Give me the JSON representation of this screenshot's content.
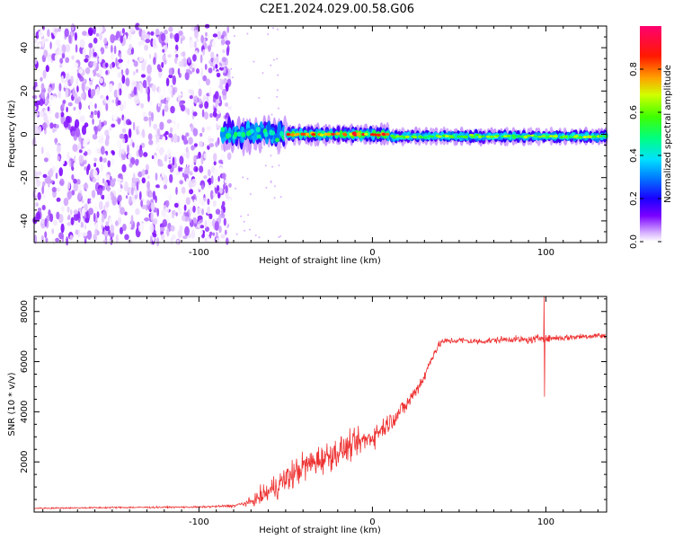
{
  "title": "C2E1.2024.029.00.58.G06",
  "chart_data": [
    {
      "type": "heatmap",
      "xlabel": "Height of straight line (km)",
      "ylabel": "Frequency (Hz)",
      "xlim": [
        -195,
        135
      ],
      "ylim": [
        -50,
        50
      ],
      "x_ticks": [
        -100,
        0,
        100
      ],
      "x_tick_labels": [
        "-100",
        "0",
        "100"
      ],
      "y_ticks": [
        -40,
        -20,
        0,
        20,
        40
      ],
      "y_tick_labels": [
        "-40",
        "-20",
        "0",
        "20",
        "40"
      ],
      "colorbar": {
        "label": "Normalized spectral amplitude",
        "range": [
          0,
          1
        ],
        "ticks": [
          0.0,
          0.2,
          0.4,
          0.6,
          0.8
        ],
        "tick_labels": [
          "0.0",
          "0.2",
          "0.4",
          "0.6",
          "0.8"
        ],
        "colormap": "rainbow (violet-blue-cyan-green-yellow-red-magenta)"
      },
      "features": {
        "noise_region_x": [
          -195,
          -82
        ],
        "noise_amplitude_range": [
          0.0,
          0.12
        ],
        "carrier_start_x": -87,
        "carrier_frequency_hz": 0,
        "carrier_peak_amplitude": 0.85,
        "carrier_segments": [
          {
            "x_start": -87,
            "x_end": -50,
            "freq_center": 0,
            "freq_spread": 4,
            "peak": 0.45
          },
          {
            "x_start": -50,
            "x_end": 10,
            "freq_center": 0,
            "freq_spread": 2.5,
            "peak": 0.8
          },
          {
            "x_start": 10,
            "x_end": 135,
            "freq_center": -1,
            "freq_spread": 2,
            "peak": 0.6
          }
        ]
      }
    },
    {
      "type": "line",
      "xlabel": "Height of straight line (km)",
      "ylabel": "SNR (10 * v/v)",
      "xlim": [
        -195,
        135
      ],
      "ylim": [
        0,
        8600
      ],
      "x_ticks": [
        -100,
        0,
        100
      ],
      "x_tick_labels": [
        "-100",
        "0",
        "100"
      ],
      "y_ticks": [
        2000,
        4000,
        6000,
        8000
      ],
      "y_tick_labels": [
        "2000",
        "4000",
        "6000",
        "8000"
      ],
      "color": "#ee3333",
      "series": [
        {
          "name": "SNR",
          "x": [
            -195,
            -150,
            -100,
            -80,
            -70,
            -60,
            -50,
            -40,
            -30,
            -20,
            -10,
            0,
            10,
            20,
            30,
            35,
            40,
            50,
            60,
            70,
            80,
            90,
            95,
            98,
            100,
            105,
            110,
            120,
            130,
            135
          ],
          "y": [
            150,
            180,
            200,
            250,
            400,
            800,
            1300,
            1800,
            2100,
            2400,
            2700,
            3000,
            3600,
            4300,
            5400,
            6300,
            6800,
            6850,
            6800,
            6850,
            6900,
            6850,
            6900,
            7000,
            6900,
            6950,
            6950,
            7000,
            7050,
            7000
          ],
          "noise_std": [
            20,
            25,
            25,
            40,
            120,
            350,
            450,
            450,
            450,
            450,
            400,
            350,
            300,
            250,
            200,
            150,
            100,
            100,
            100,
            100,
            100,
            110,
            120,
            120,
            110,
            100,
            100,
            100,
            100,
            100
          ]
        }
      ],
      "spike": {
        "x": 99,
        "y_max": 8600,
        "y_min": 4600
      }
    }
  ]
}
